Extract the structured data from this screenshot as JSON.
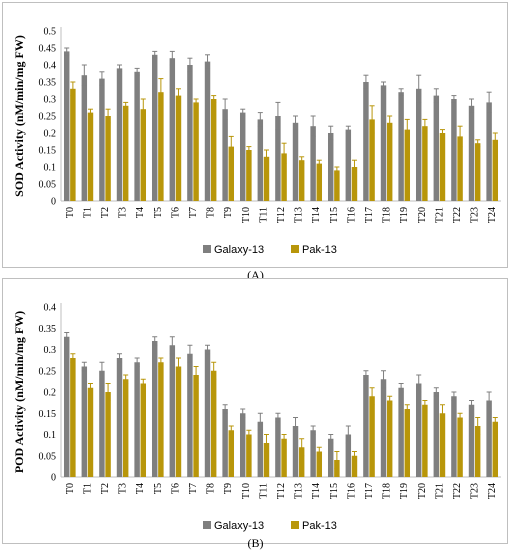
{
  "chart_data": [
    {
      "type": "bar",
      "panel": "A",
      "caption": "(A)",
      "ylabel": "SOD Activity (nM/min/mg FW)",
      "ylim": [
        0,
        0.5
      ],
      "yticks": [
        "0",
        "0.05",
        "0.1",
        "0.15",
        "0.2",
        "0.25",
        "0.3",
        "0.35",
        "0.4",
        "0.45",
        "0.5"
      ],
      "grid": false,
      "legend_position": "bottom",
      "categories": [
        "T0",
        "T1",
        "T2",
        "T3",
        "T4",
        "T5",
        "T6",
        "T7",
        "T8",
        "T9",
        "T10",
        "T11",
        "T12",
        "T13",
        "T14",
        "T15",
        "T16",
        "T17",
        "T18",
        "T19",
        "T20",
        "T21",
        "T22",
        "T23",
        "T24"
      ],
      "series": [
        {
          "name": "Galaxy-13",
          "color": "#7f7f7f",
          "values": [
            0.44,
            0.37,
            0.36,
            0.39,
            0.38,
            0.43,
            0.42,
            0.4,
            0.41,
            0.27,
            0.26,
            0.24,
            0.25,
            0.23,
            0.22,
            0.2,
            0.21,
            0.35,
            0.34,
            0.32,
            0.33,
            0.31,
            0.3,
            0.28,
            0.29
          ],
          "errors": [
            0.01,
            0.03,
            0.02,
            0.01,
            0.01,
            0.01,
            0.02,
            0.02,
            0.02,
            0.03,
            0.01,
            0.02,
            0.04,
            0.02,
            0.03,
            0.02,
            0.01,
            0.02,
            0.01,
            0.01,
            0.04,
            0.02,
            0.01,
            0.02,
            0.03
          ]
        },
        {
          "name": "Pak-13",
          "color": "#b8960a",
          "values": [
            0.33,
            0.26,
            0.25,
            0.28,
            0.27,
            0.32,
            0.31,
            0.29,
            0.3,
            0.16,
            0.15,
            0.13,
            0.14,
            0.12,
            0.11,
            0.09,
            0.1,
            0.24,
            0.23,
            0.21,
            0.22,
            0.2,
            0.19,
            0.17,
            0.18
          ],
          "errors": [
            0.02,
            0.01,
            0.02,
            0.01,
            0.03,
            0.04,
            0.02,
            0.01,
            0.01,
            0.03,
            0.01,
            0.02,
            0.03,
            0.01,
            0.01,
            0.01,
            0.02,
            0.04,
            0.02,
            0.03,
            0.02,
            0.01,
            0.03,
            0.01,
            0.02
          ]
        }
      ]
    },
    {
      "type": "bar",
      "panel": "B",
      "caption": "(B)",
      "ylabel": "POD Activity (nM/min/mg FW)",
      "ylim": [
        0,
        0.4
      ],
      "yticks": [
        "0",
        "0.05",
        "0.1",
        "0.15",
        "0.2",
        "0.25",
        "0.3",
        "0.35",
        "0.4"
      ],
      "grid": false,
      "legend_position": "bottom",
      "categories": [
        "T0",
        "T1",
        "T2",
        "T3",
        "T4",
        "T5",
        "T6",
        "T7",
        "T8",
        "T9",
        "T10",
        "T11",
        "T12",
        "T13",
        "T14",
        "T15",
        "T16",
        "T17",
        "T18",
        "T19",
        "T20",
        "T21",
        "T22",
        "T23",
        "T24"
      ],
      "series": [
        {
          "name": "Galaxy-13",
          "color": "#7f7f7f",
          "values": [
            0.33,
            0.26,
            0.25,
            0.28,
            0.27,
            0.32,
            0.31,
            0.29,
            0.3,
            0.16,
            0.15,
            0.13,
            0.14,
            0.12,
            0.11,
            0.09,
            0.1,
            0.24,
            0.23,
            0.21,
            0.22,
            0.2,
            0.19,
            0.17,
            0.18
          ],
          "errors": [
            0.01,
            0.01,
            0.02,
            0.01,
            0.01,
            0.01,
            0.02,
            0.02,
            0.01,
            0.01,
            0.01,
            0.02,
            0.01,
            0.02,
            0.01,
            0.01,
            0.02,
            0.01,
            0.02,
            0.01,
            0.02,
            0.01,
            0.01,
            0.01,
            0.02
          ]
        },
        {
          "name": "Pak-13",
          "color": "#b8960a",
          "values": [
            0.28,
            0.21,
            0.2,
            0.23,
            0.22,
            0.27,
            0.26,
            0.24,
            0.25,
            0.11,
            0.1,
            0.08,
            0.09,
            0.07,
            0.06,
            0.04,
            0.05,
            0.19,
            0.18,
            0.16,
            0.17,
            0.15,
            0.14,
            0.12,
            0.13
          ],
          "errors": [
            0.01,
            0.01,
            0.02,
            0.01,
            0.01,
            0.01,
            0.02,
            0.02,
            0.02,
            0.01,
            0.01,
            0.02,
            0.01,
            0.02,
            0.01,
            0.02,
            0.01,
            0.02,
            0.01,
            0.01,
            0.01,
            0.02,
            0.01,
            0.02,
            0.01
          ]
        }
      ]
    }
  ]
}
